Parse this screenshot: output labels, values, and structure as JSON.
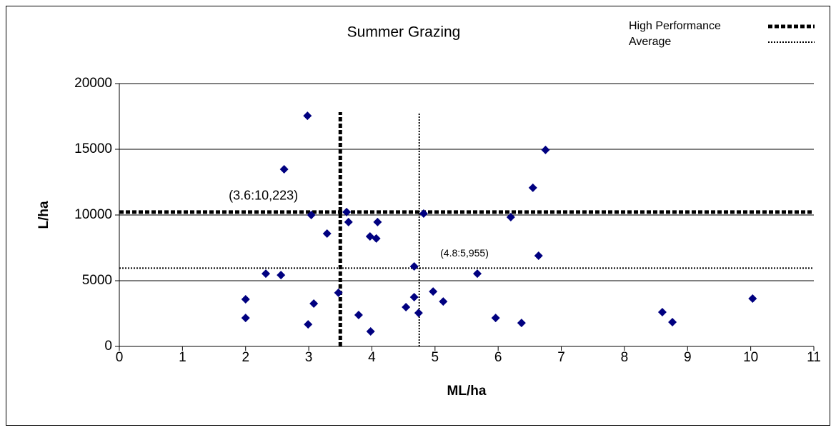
{
  "chart_data": {
    "type": "scatter",
    "title": "Summer Grazing",
    "x_label": "ML/ha",
    "y_label": "L/ha",
    "xlim": [
      0,
      11
    ],
    "ylim": [
      0,
      20000
    ],
    "xticks": [
      0,
      1,
      2,
      3,
      4,
      5,
      6,
      7,
      8,
      9,
      10,
      11
    ],
    "yticks": [
      0,
      5000,
      10000,
      15000,
      20000
    ],
    "grid": true,
    "legend": "top-right",
    "color": "#000080",
    "x": [
      2.98,
      2.61,
      3.04,
      3.29,
      3.6,
      3.63,
      3.97,
      4.07,
      4.09,
      4.82,
      6.2,
      6.55,
      6.75,
      6.64,
      4.67,
      5.67,
      2.32,
      2.56,
      2.0,
      2.0,
      3.08,
      2.99,
      3.47,
      3.79,
      3.98,
      4.54,
      4.67,
      4.74,
      4.97,
      5.13,
      5.96,
      6.37,
      8.6,
      8.76,
      10.03
    ],
    "values": [
      17550,
      13480,
      10000,
      8590,
      10223,
      9460,
      8370,
      8210,
      9460,
      10110,
      9840,
      12070,
      14950,
      6900,
      6090,
      5540,
      5540,
      5430,
      3590,
      2170,
      3260,
      1680,
      4080,
      2390,
      1140,
      2990,
      3750,
      2550,
      4180,
      3420,
      2170,
      1790,
      2610,
      1850,
      3640
    ],
    "reference_lines": [
      {
        "name": "High Performance",
        "x": 3.5,
        "y": 10223,
        "style": "thick"
      },
      {
        "name": "Average",
        "x": 4.75,
        "y": 5955,
        "style": "thin"
      }
    ],
    "annotations": [
      {
        "text": "(3.6:10,223)",
        "x": 3.6,
        "y": 10223
      },
      {
        "text": "(4.8:5,955)",
        "x": 4.8,
        "y": 5955
      }
    ]
  }
}
